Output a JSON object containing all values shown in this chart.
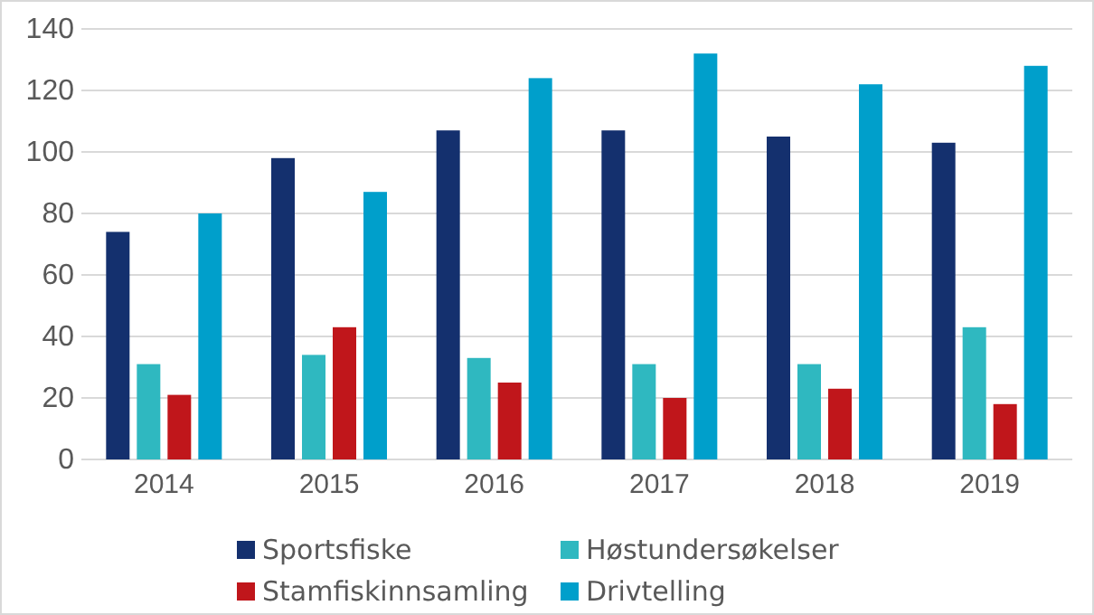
{
  "chart_data": {
    "type": "bar",
    "categories": [
      "2014",
      "2015",
      "2016",
      "2017",
      "2018",
      "2019"
    ],
    "series": [
      {
        "name": "Sportsfiske",
        "color": "#14306e",
        "values": [
          74,
          98,
          107,
          107,
          105,
          103
        ]
      },
      {
        "name": "Høstundersøkelser",
        "color": "#2fb8c0",
        "values": [
          31,
          34,
          33,
          31,
          31,
          43
        ]
      },
      {
        "name": "Stamfiskinnsamling",
        "color": "#c0161b",
        "values": [
          21,
          43,
          25,
          20,
          23,
          18
        ]
      },
      {
        "name": "Drivtelling",
        "color": "#009fcb",
        "values": [
          80,
          87,
          124,
          132,
          122,
          128
        ]
      }
    ],
    "ylim": [
      0,
      140
    ],
    "yticks": [
      0,
      20,
      40,
      60,
      80,
      100,
      120,
      140
    ],
    "grid": "y",
    "legend": "bottom"
  }
}
